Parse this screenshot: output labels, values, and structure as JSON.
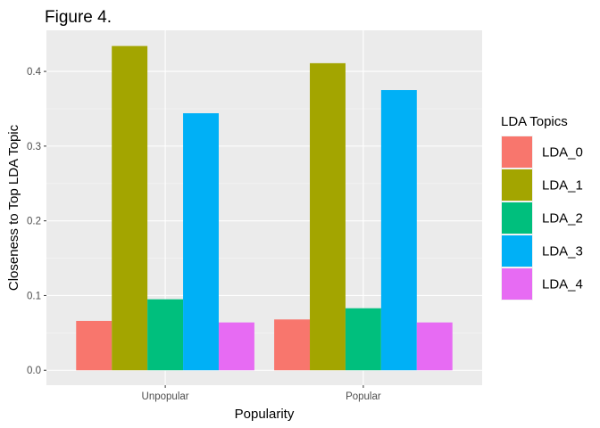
{
  "chart_data": {
    "type": "bar",
    "title": "Figure 4.",
    "xlabel": "Popularity",
    "ylabel": "Closeness to Top LDA Topic",
    "categories": [
      "Unpopular",
      "Popular"
    ],
    "ylim": [
      -0.02,
      0.455
    ],
    "yticks": [
      0.0,
      0.1,
      0.2,
      0.3,
      0.4
    ],
    "ytick_labels": [
      "0.0",
      "0.1",
      "0.2",
      "0.3",
      "0.4"
    ],
    "grid": true,
    "legend": {
      "title": "LDA Topics",
      "position": "right"
    },
    "series": [
      {
        "name": "LDA_0",
        "color": "#F8766D",
        "values": [
          0.066,
          0.068
        ]
      },
      {
        "name": "LDA_1",
        "color": "#A3A500",
        "values": [
          0.434,
          0.411
        ]
      },
      {
        "name": "LDA_2",
        "color": "#00BF7D",
        "values": [
          0.095,
          0.083
        ]
      },
      {
        "name": "LDA_3",
        "color": "#00B0F6",
        "values": [
          0.344,
          0.375
        ]
      },
      {
        "name": "LDA_4",
        "color": "#E76BF3",
        "values": [
          0.064,
          0.064
        ]
      }
    ]
  }
}
